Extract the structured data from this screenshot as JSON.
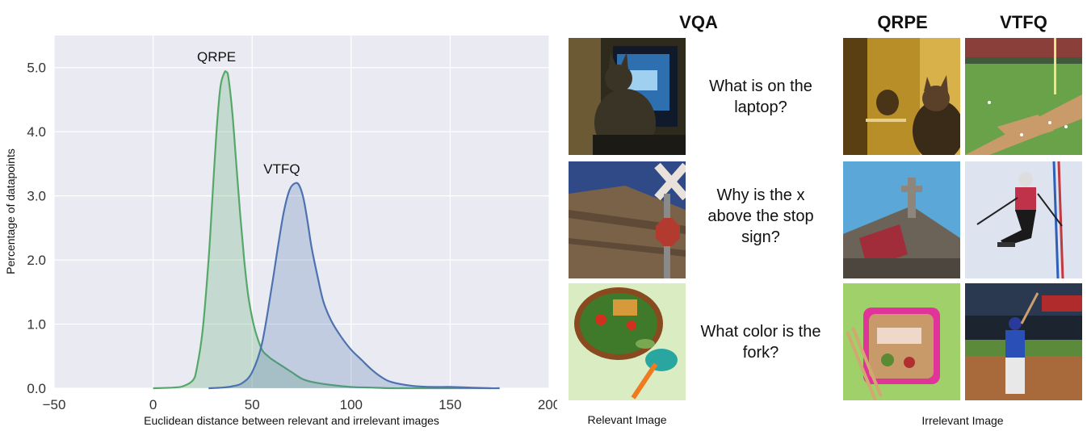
{
  "chart_data": {
    "type": "area",
    "xlabel": "Euclidean distance between relevant and irrelevant images",
    "ylabel": "Percentage of datapoints",
    "xlim": [
      -50,
      200
    ],
    "ylim": [
      0,
      5.5
    ],
    "xticks": [
      -50,
      0,
      50,
      100,
      150,
      200
    ],
    "xtick_labels": [
      "−50",
      "0",
      "50",
      "100",
      "150",
      "200"
    ],
    "yticks": [
      0,
      1,
      2,
      3,
      4,
      5
    ],
    "ytick_labels": [
      "0.0",
      "1.0",
      "2.0",
      "3.0",
      "4.0",
      "5.0"
    ],
    "grid": true,
    "series": [
      {
        "name": "QRPE",
        "color": "#55a868",
        "x": [
          0,
          10,
          15,
          20,
          22,
          25,
          28,
          30,
          32,
          34,
          36,
          37,
          38,
          40,
          42,
          44,
          46,
          48,
          50,
          52,
          55,
          58,
          60,
          65,
          70,
          75,
          80,
          90,
          100,
          110,
          120,
          130,
          140,
          150,
          160,
          170
        ],
        "y": [
          0.0,
          0.01,
          0.03,
          0.12,
          0.3,
          0.9,
          2.0,
          3.0,
          4.0,
          4.7,
          4.92,
          4.93,
          4.85,
          4.3,
          3.5,
          2.7,
          2.0,
          1.45,
          1.1,
          0.85,
          0.6,
          0.5,
          0.45,
          0.35,
          0.25,
          0.15,
          0.1,
          0.05,
          0.02,
          0.01,
          0.0,
          0.0,
          0.0,
          0.0,
          0.0,
          0.0
        ],
        "label_x": 32,
        "label_y": 5.1
      },
      {
        "name": "VTFQ",
        "color": "#4c72b0",
        "x": [
          28,
          35,
          40,
          45,
          50,
          55,
          60,
          63,
          66,
          69,
          72,
          74,
          76,
          78,
          80,
          83,
          86,
          90,
          95,
          100,
          105,
          110,
          115,
          120,
          130,
          140,
          150,
          160,
          170,
          175
        ],
        "y": [
          0.0,
          0.01,
          0.03,
          0.08,
          0.25,
          0.7,
          1.6,
          2.2,
          2.75,
          3.1,
          3.2,
          3.15,
          2.95,
          2.6,
          2.2,
          1.75,
          1.35,
          1.05,
          0.8,
          0.6,
          0.45,
          0.3,
          0.18,
          0.1,
          0.04,
          0.02,
          0.02,
          0.01,
          0.0,
          0.0
        ],
        "label_x": 65,
        "label_y": 3.35
      }
    ]
  },
  "headers": {
    "vqa": "VQA",
    "qrpe": "QRPE",
    "vtfq": "VTFQ"
  },
  "questions": [
    "What is on the laptop?",
    "Why is the x above the stop sign?",
    "What color is the fork?"
  ],
  "captions": {
    "relevant": "Relevant Image",
    "irrelevant": "Irrelevant Image"
  }
}
